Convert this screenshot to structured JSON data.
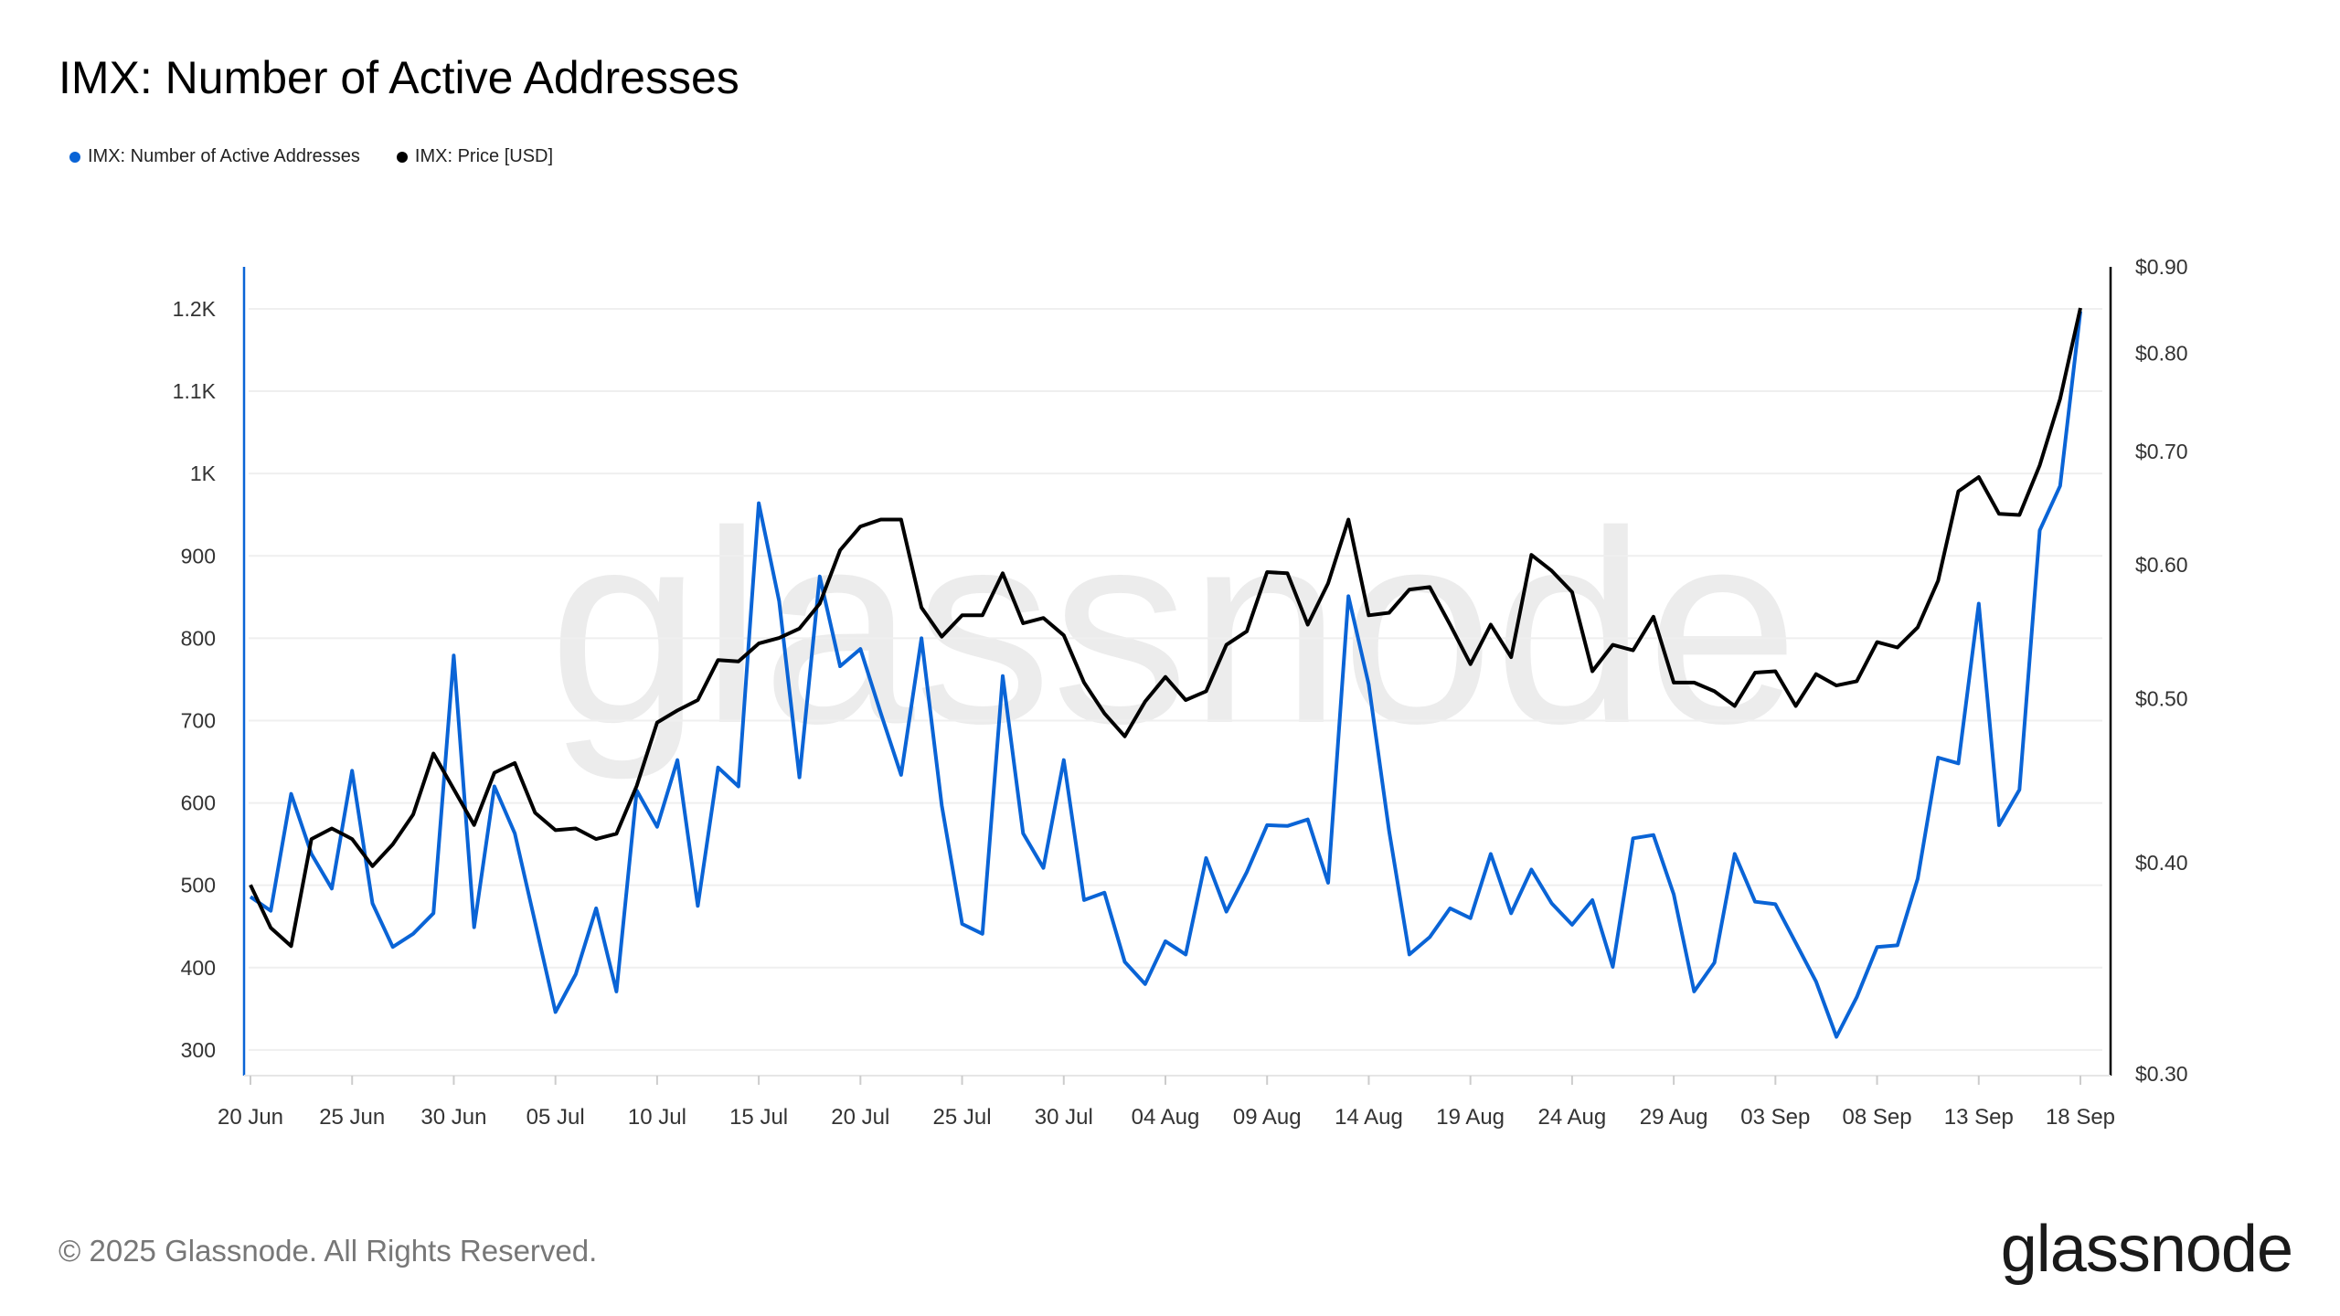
{
  "title": "IMX: Number of Active Addresses",
  "footer": "© 2025 Glassnode. All Rights Reserved.",
  "logo_text": "glassnode",
  "watermark": "glassnode",
  "chart_data": {
    "type": "line",
    "title": "IMX: Number of Active Addresses",
    "x_start": "2025-06-20",
    "x_end": "2025-09-18",
    "x_ticks": [
      "20 Jun",
      "25 Jun",
      "30 Jun",
      "05 Jul",
      "10 Jul",
      "15 Jul",
      "20 Jul",
      "25 Jul",
      "30 Jul",
      "04 Aug",
      "09 Aug",
      "14 Aug",
      "19 Aug",
      "24 Aug",
      "29 Aug",
      "03 Sep",
      "08 Sep",
      "13 Sep",
      "18 Sep"
    ],
    "y_left": {
      "ticks": [
        "300",
        "400",
        "500",
        "600",
        "700",
        "800",
        "900",
        "1K",
        "1.1K",
        "1.2K"
      ],
      "tick_values": [
        300,
        400,
        500,
        600,
        700,
        800,
        900,
        1000,
        1100,
        1200
      ],
      "range": [
        271,
        1251
      ],
      "scale": "linear"
    },
    "y_right": {
      "ticks": [
        "$0.30",
        "$0.40",
        "$0.50",
        "$0.60",
        "$0.70",
        "$0.80",
        "$0.90"
      ],
      "tick_values": [
        0.3,
        0.4,
        0.5,
        0.6,
        0.7,
        0.8,
        0.9
      ],
      "range": [
        0.3,
        0.9
      ],
      "scale": "log"
    },
    "grid": true,
    "legend_position": "top-left",
    "series": [
      {
        "name": "IMX: Number of Active Addresses",
        "axis": "left",
        "color": "#0a64d6",
        "values": [
          486,
          469,
          611,
          538,
          496,
          639,
          478,
          425,
          441,
          466,
          779,
          449,
          620,
          563,
          455,
          346,
          392,
          472,
          371,
          615,
          571,
          652,
          475,
          643,
          620,
          964,
          845,
          631,
          875,
          766,
          787,
          709,
          634,
          800,
          597,
          453,
          441,
          754,
          563,
          521,
          652,
          482,
          491,
          407,
          380,
          432,
          416,
          533,
          468,
          516,
          573,
          572,
          580,
          503,
          851,
          744,
          566,
          416,
          437,
          472,
          460,
          538,
          466,
          519,
          478,
          452,
          482,
          401,
          557,
          561,
          489,
          371,
          406,
          538,
          480,
          477,
          430,
          383,
          316,
          364,
          425,
          427,
          508,
          655,
          648,
          842,
          573,
          616,
          931,
          985,
          1197
        ]
      },
      {
        "name": "IMX: Price [USD]",
        "axis": "right",
        "color": "#000000",
        "values": [
          0.388,
          0.366,
          0.357,
          0.413,
          0.419,
          0.413,
          0.398,
          0.41,
          0.427,
          0.464,
          0.442,
          0.421,
          0.452,
          0.458,
          0.428,
          0.418,
          0.419,
          0.413,
          0.416,
          0.444,
          0.484,
          0.492,
          0.499,
          0.527,
          0.526,
          0.539,
          0.543,
          0.55,
          0.569,
          0.612,
          0.632,
          0.638,
          0.638,
          0.566,
          0.544,
          0.56,
          0.56,
          0.593,
          0.554,
          0.558,
          0.545,
          0.511,
          0.49,
          0.475,
          0.498,
          0.515,
          0.499,
          0.505,
          0.538,
          0.548,
          0.594,
          0.593,
          0.553,
          0.585,
          0.638,
          0.56,
          0.562,
          0.58,
          0.582,
          0.553,
          0.524,
          0.553,
          0.529,
          0.608,
          0.595,
          0.578,
          0.519,
          0.538,
          0.534,
          0.559,
          0.511,
          0.511,
          0.505,
          0.495,
          0.518,
          0.519,
          0.495,
          0.517,
          0.509,
          0.512,
          0.54,
          0.536,
          0.551,
          0.587,
          0.663,
          0.676,
          0.643,
          0.642,
          0.687,
          0.752,
          0.851
        ]
      }
    ]
  }
}
